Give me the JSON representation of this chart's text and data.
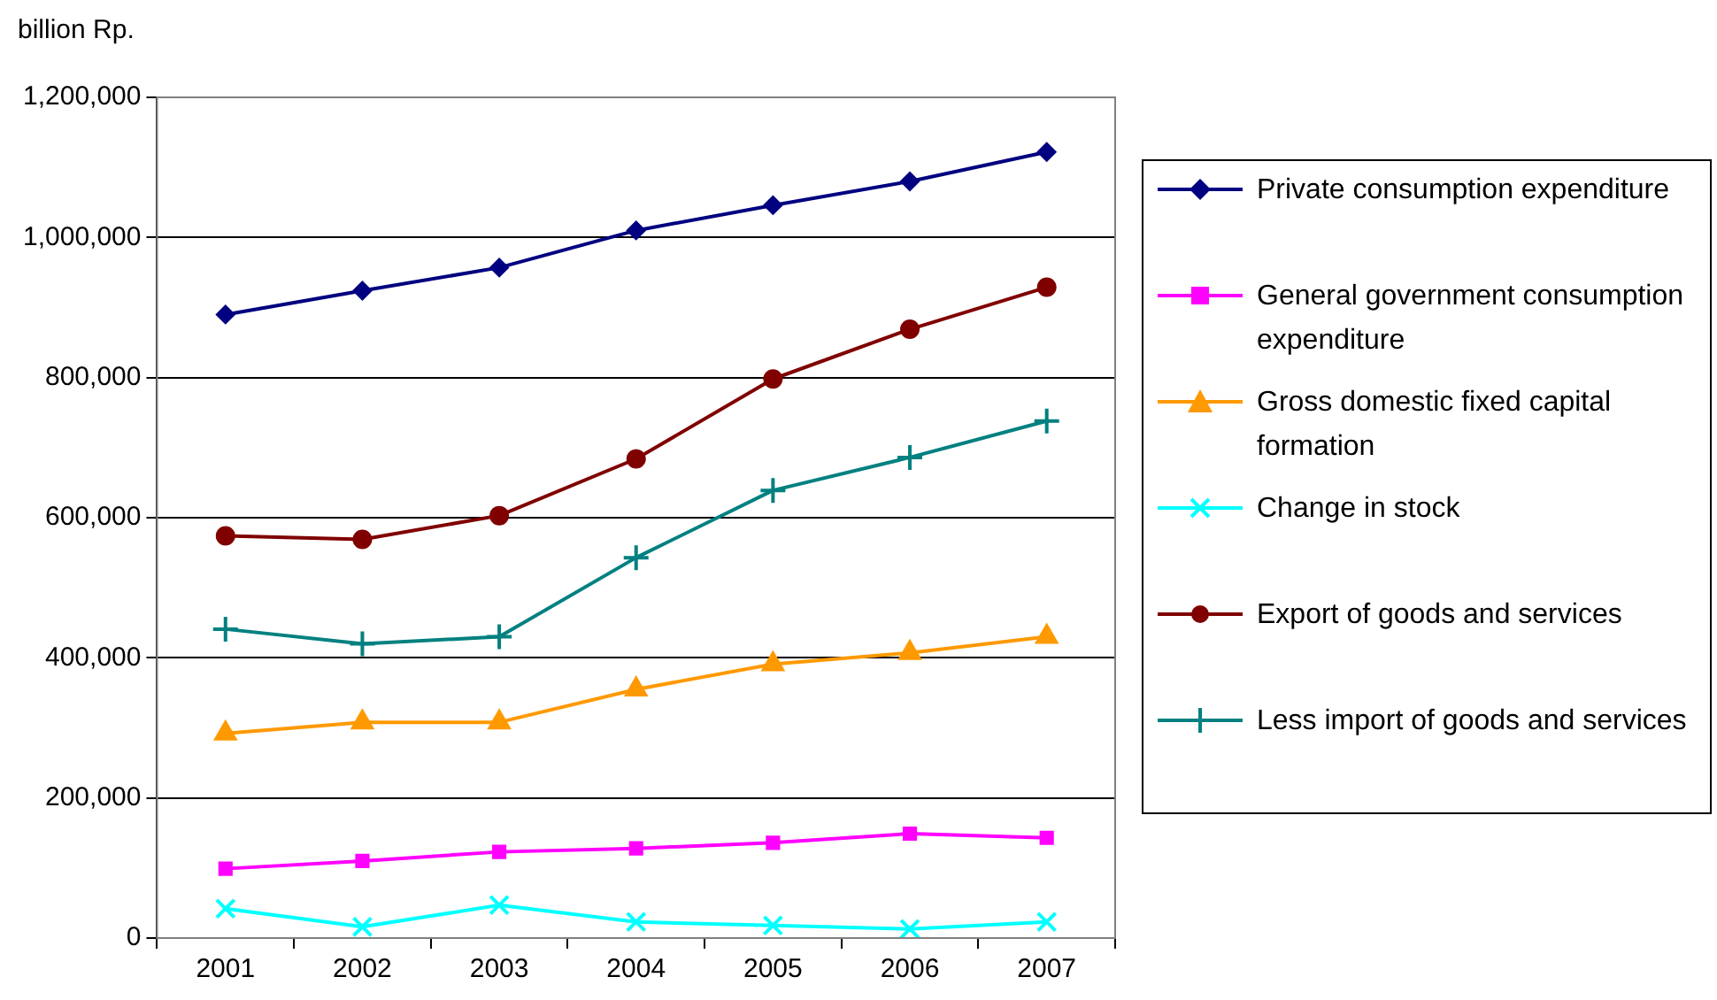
{
  "chart_data": {
    "type": "line",
    "ylabel": "billion Rp.",
    "categories": [
      "2001",
      "2002",
      "2003",
      "2004",
      "2005",
      "2006",
      "2007"
    ],
    "ylim": [
      0,
      1200000
    ],
    "yticks": [
      0,
      {
        "value": 200000,
        "label": "200,000"
      },
      {
        "value": 400000,
        "label": "400,000"
      },
      {
        "value": 600000,
        "label": "600,000"
      },
      {
        "value": 800000,
        "label": "800,000"
      },
      {
        "value": 1000000,
        "label": "1,000,000"
      },
      {
        "value": 1200000,
        "label": "1,200,000"
      }
    ],
    "grid": "y",
    "legend": "right",
    "line_style": "solid",
    "series": [
      {
        "name": "Private consumption expenditure",
        "color": "#000080",
        "marker": "diamond",
        "values": [
          890000,
          924000,
          957000,
          1010000,
          1046000,
          1080000,
          1122000
        ]
      },
      {
        "name": "General government consumption expenditure",
        "color": "#ff00ff",
        "marker": "square",
        "values": [
          99000,
          110000,
          123000,
          128000,
          136000,
          149000,
          143000
        ]
      },
      {
        "name": "Gross domestic fixed capital formation",
        "color": "#ff9900",
        "marker": "triangle",
        "values": [
          292000,
          308000,
          308000,
          355000,
          391000,
          407000,
          430000
        ]
      },
      {
        "name": "Change in stock",
        "color": "#00ffff",
        "marker": "x",
        "values": [
          42000,
          16000,
          47000,
          23000,
          18000,
          13000,
          23000
        ]
      },
      {
        "name": "Export of goods and services",
        "color": "#800000",
        "marker": "circle",
        "values": [
          574000,
          569000,
          603000,
          684000,
          798000,
          869000,
          929000
        ]
      },
      {
        "name": "Less import of goods and services",
        "color": "#008080",
        "marker": "cross",
        "values": [
          441000,
          420000,
          430000,
          543000,
          639000,
          686000,
          738000
        ]
      }
    ]
  }
}
